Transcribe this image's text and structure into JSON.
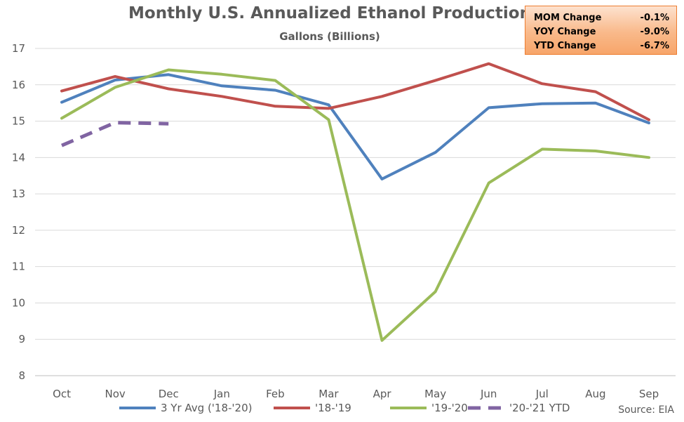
{
  "chart_data": {
    "type": "line",
    "title": "Monthly U.S. Annualized Ethanol Production",
    "subtitle": "Gallons (Billions)",
    "categories": [
      "Oct",
      "Nov",
      "Dec",
      "Jan",
      "Feb",
      "Mar",
      "Apr",
      "May",
      "Jun",
      "Jul",
      "Aug",
      "Sep"
    ],
    "ylim": [
      8,
      17
    ],
    "yticks": [
      8,
      9,
      10,
      11,
      12,
      13,
      14,
      15,
      16,
      17
    ],
    "grid": true,
    "legend_position": "bottom",
    "series": [
      {
        "name": "3 Yr Avg ('18-'20)",
        "color": "#4F81BD",
        "dashed": false,
        "values": [
          15.52,
          16.13,
          16.28,
          15.97,
          15.85,
          15.45,
          13.41,
          14.14,
          15.37,
          15.48,
          15.5,
          14.95
        ]
      },
      {
        "name": "'18-'19",
        "color": "#C0504D",
        "dashed": false,
        "values": [
          15.83,
          16.23,
          15.89,
          15.68,
          15.41,
          15.35,
          15.68,
          16.12,
          16.58,
          16.03,
          15.81,
          15.04
        ]
      },
      {
        "name": "'19-'20",
        "color": "#9BBB59",
        "dashed": false,
        "values": [
          15.08,
          15.93,
          16.41,
          16.29,
          16.12,
          15.04,
          8.97,
          10.31,
          13.3,
          14.23,
          14.18,
          14.0
        ]
      },
      {
        "name": "'20-'21 YTD",
        "color": "#8064A2",
        "dashed": true,
        "values": [
          14.33,
          14.96,
          14.93,
          null,
          null,
          null,
          null,
          null,
          null,
          null,
          null,
          null
        ]
      }
    ]
  },
  "stats": [
    {
      "label": "MOM Change",
      "value": "-0.1%"
    },
    {
      "label": "YOY Change",
      "value": "-9.0%"
    },
    {
      "label": "YTD Change",
      "value": "-6.7%"
    }
  ],
  "source": "Source: EIA"
}
